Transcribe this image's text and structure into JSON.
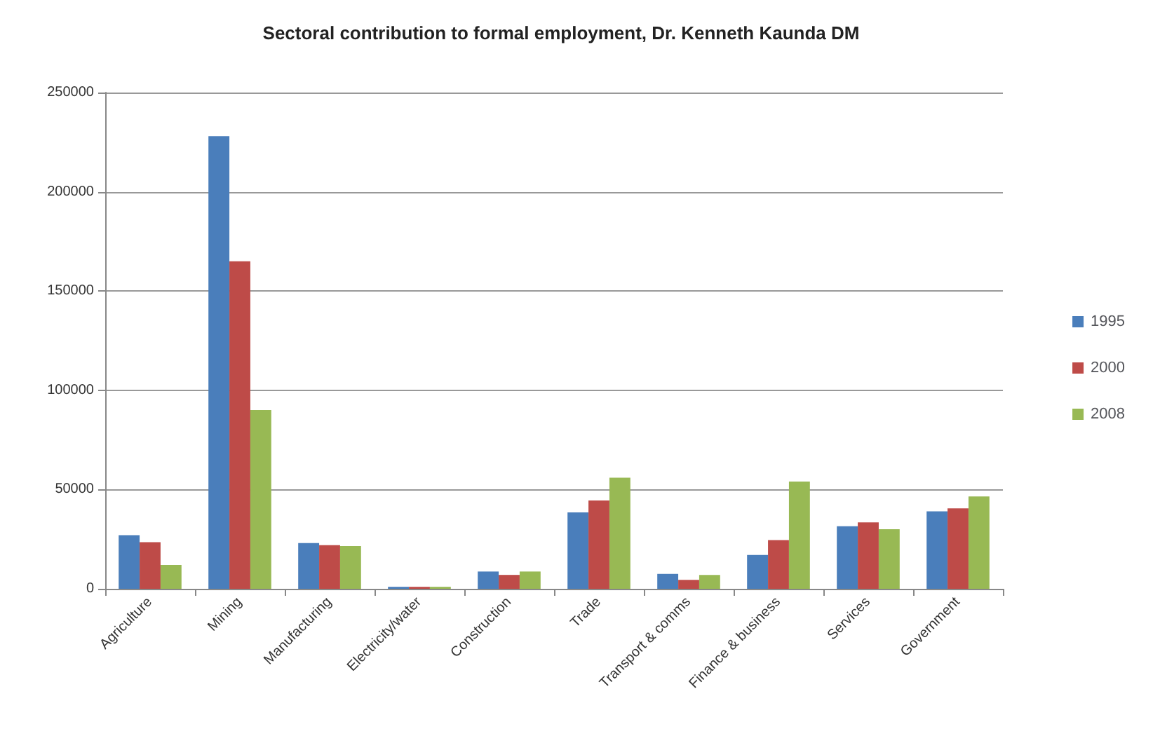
{
  "chart_data": {
    "type": "bar",
    "title": "Sectoral contribution to formal employment, Dr. Kenneth Kaunda DM",
    "categories": [
      "Agriculture",
      "Mining",
      "Manufacturing",
      "Electricity/water",
      "Construction",
      "Trade",
      "Transport & comms",
      "Finance & business",
      "Services",
      "Government"
    ],
    "series": [
      {
        "name": "1995",
        "color": "#4a7ebb",
        "values": [
          27000,
          228000,
          23000,
          1000,
          8700,
          38500,
          7500,
          17000,
          31500,
          39000
        ]
      },
      {
        "name": "2000",
        "color": "#be4b48",
        "values": [
          23500,
          165000,
          22000,
          1000,
          7000,
          44500,
          4500,
          24500,
          33500,
          40500
        ]
      },
      {
        "name": "2008",
        "color": "#98b954",
        "values": [
          12000,
          90000,
          21500,
          1000,
          8700,
          56000,
          7000,
          54000,
          30000,
          46500
        ]
      }
    ],
    "ylim": [
      0,
      250000
    ],
    "yticks": [
      0,
      50000,
      100000,
      150000,
      200000,
      250000
    ],
    "grid": "y",
    "legend": "right"
  }
}
